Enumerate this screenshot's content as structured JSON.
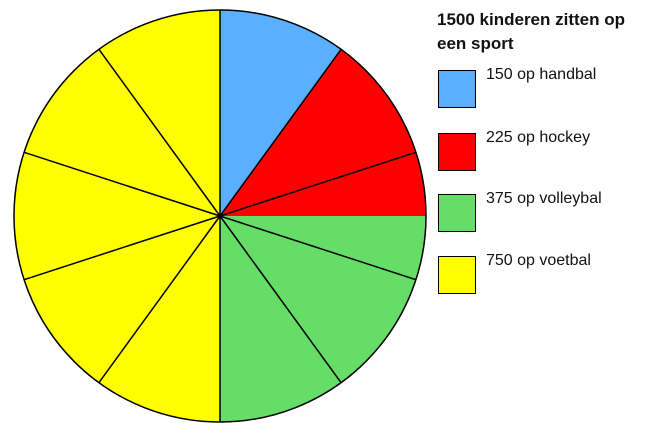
{
  "chart_data": {
    "type": "pie",
    "title": "1500 kinderen zitten op een sport",
    "total": 1500,
    "slices": [
      {
        "label": "150 op handbal",
        "value": 150,
        "color": "#5aafff"
      },
      {
        "label": "225 op hockey",
        "value": 225,
        "color": "#ff0000"
      },
      {
        "label": "375 op volleybal",
        "value": 375,
        "color": "#66dd66"
      },
      {
        "label": "750 op voetbal",
        "value": 750,
        "color": "#ffff00"
      }
    ],
    "wedge_unit_value": 150,
    "start_angle_deg": 0,
    "direction": "clockwise",
    "legend_position": "right"
  }
}
